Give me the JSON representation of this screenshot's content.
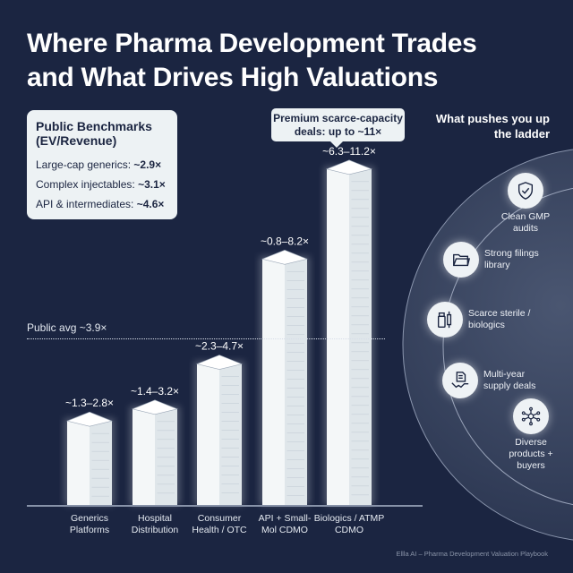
{
  "title": [
    "Where Pharma Development Trades",
    "and What Drives High Valuations"
  ],
  "benchmarks": {
    "heading": "Public Benchmarks (EV/Revenue)",
    "rows": [
      {
        "label": "Large-cap generics: ",
        "value": "~2.9×"
      },
      {
        "label": "Complex injectables: ",
        "value": "~3.1×"
      },
      {
        "label": "API & intermediates: ",
        "value": "~4.6×"
      }
    ]
  },
  "callout": "Premium scarce-capacity deals: up to ~11×",
  "public_avg": {
    "label": "Public avg ~3.9×",
    "value": 3.9
  },
  "chart_data": {
    "type": "bar",
    "categories": [
      "Generics Platforms",
      "Hospital Distribution",
      "Consumer Health / OTC",
      "API + Small-Mol CDMO",
      "Biologics / ATMP CDMO"
    ],
    "ranges": [
      [
        1.3,
        2.8
      ],
      [
        1.4,
        3.2
      ],
      [
        2.3,
        4.7
      ],
      [
        0.8,
        8.2
      ],
      [
        6.3,
        11.2
      ]
    ],
    "labels": [
      "~1.3–2.8×",
      "~1.4–3.2×",
      "~2.3–4.7×",
      "~0.8–8.2×",
      "~6.3–11.2×"
    ],
    "reference_line": {
      "label": "Public avg ~3.9×",
      "value": 3.9
    },
    "colors": {
      "bar": "#eef3f5",
      "background": "#1b2541"
    }
  },
  "ladder": {
    "title": "What pushes you up the ladder",
    "items": [
      {
        "icon": "shield-check-icon",
        "label": "Clean GMP audits"
      },
      {
        "icon": "folder-icon",
        "label": "Strong filings library"
      },
      {
        "icon": "vial-syringe-icon",
        "label": "Scarce sterile / biologics"
      },
      {
        "icon": "handshake-document-icon",
        "label": "Multi-year supply deals"
      },
      {
        "icon": "network-icon",
        "label": "Diverse products + buyers"
      }
    ]
  },
  "footer": "Ellla AI – Pharma Development Valuation Playbook"
}
